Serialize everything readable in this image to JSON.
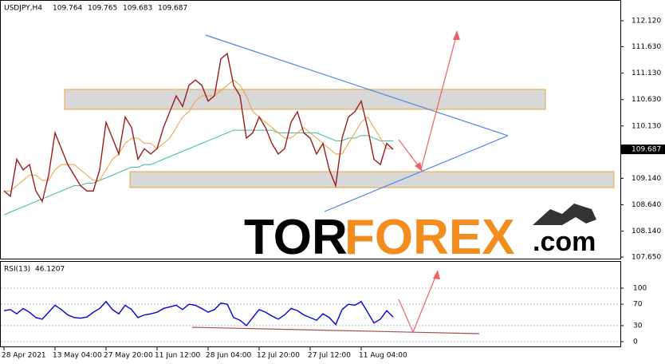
{
  "symbol": "USDJPY,H4",
  "ohlc": [
    109.764,
    109.765,
    109.683,
    109.687
  ],
  "watermark": [
    "TOR",
    "FOREX",
    ".com"
  ],
  "chart_data": [
    {
      "type": "line",
      "ylim": [
        107.605,
        112.513
      ],
      "yticks": [
        {
          "value": 107.65,
          "label": "107.650"
        },
        {
          "value": 108.14,
          "label": "108.140"
        },
        {
          "value": 108.64,
          "label": "108.640"
        },
        {
          "value": 109.14,
          "label": "109.140"
        },
        {
          "value": 110.13,
          "label": "110.130"
        },
        {
          "value": 110.63,
          "label": "110.630"
        },
        {
          "value": 111.13,
          "label": "111.130"
        },
        {
          "value": 111.63,
          "label": "111.630"
        },
        {
          "value": 112.12,
          "label": "112.120"
        }
      ],
      "last_price": 109.687,
      "series": [
        {
          "color": "#9b1c1c",
          "values": [
            108.9,
            108.8,
            109.5,
            109.3,
            109.4,
            108.9,
            108.7,
            109.2,
            110.0,
            109.7,
            109.4,
            109.2,
            109.0,
            108.9,
            108.9,
            109.3,
            110.2,
            109.9,
            109.6,
            110.3,
            110.1,
            109.5,
            109.7,
            109.6,
            109.7,
            110.1,
            110.4,
            110.7,
            110.5,
            110.9,
            111.0,
            110.9,
            110.6,
            110.7,
            111.4,
            111.5,
            110.9,
            110.7,
            109.9,
            110.0,
            110.3,
            110.1,
            109.8,
            109.6,
            109.7,
            110.2,
            110.4,
            110.0,
            109.9,
            109.6,
            109.8,
            109.3,
            109.0,
            109.9,
            110.3,
            110.4,
            110.6,
            110.1,
            109.5,
            109.4,
            109.8,
            109.687
          ]
        },
        {
          "color": "#e8a040",
          "values": [
            108.9,
            108.9,
            109.0,
            109.1,
            109.2,
            109.2,
            109.1,
            109.1,
            109.3,
            109.4,
            109.4,
            109.4,
            109.3,
            109.2,
            109.1,
            109.1,
            109.3,
            109.5,
            109.6,
            109.8,
            109.9,
            109.9,
            109.8,
            109.8,
            109.7,
            109.8,
            109.9,
            110.1,
            110.3,
            110.4,
            110.6,
            110.7,
            110.7,
            110.7,
            110.8,
            110.9,
            111.0,
            110.9,
            110.7,
            110.4,
            110.3,
            110.2,
            110.1,
            110.0,
            109.9,
            109.9,
            110.0,
            110.1,
            110.0,
            109.9,
            109.8,
            109.7,
            109.6,
            109.6,
            109.8,
            110.0,
            110.2,
            110.3,
            110.1,
            109.9,
            109.7,
            109.7
          ]
        },
        {
          "color": "#3cb89a",
          "values": [
            108.45,
            108.5,
            108.55,
            108.6,
            108.65,
            108.7,
            108.75,
            108.8,
            108.85,
            108.9,
            108.95,
            109.0,
            109.0,
            109.05,
            109.05,
            109.1,
            109.15,
            109.2,
            109.25,
            109.3,
            109.35,
            109.35,
            109.4,
            109.4,
            109.45,
            109.5,
            109.55,
            109.6,
            109.65,
            109.7,
            109.75,
            109.8,
            109.85,
            109.9,
            109.95,
            110.0,
            110.05,
            110.05,
            110.05,
            110.05,
            110.05,
            110.05,
            110.05,
            110.0,
            110.0,
            110.0,
            110.0,
            110.0,
            110.0,
            110.0,
            109.95,
            109.9,
            109.85,
            109.85,
            109.9,
            109.9,
            109.95,
            109.95,
            109.9,
            109.85,
            109.85,
            109.85
          ]
        }
      ]
    },
    {
      "type": "line",
      "title": "RSI(13)",
      "ylim": [
        -10.4,
        150.7
      ],
      "yticks": [
        0,
        30,
        70,
        100
      ],
      "grid": true,
      "categories": [
        "28 Apr 2021",
        null,
        null,
        null,
        null,
        null,
        null,
        null,
        "13 May 04:00",
        null,
        null,
        null,
        null,
        null,
        null,
        null,
        "27 May 20:00",
        null,
        null,
        null,
        null,
        null,
        null,
        null,
        "11 Jun 12:00",
        null,
        null,
        null,
        null,
        null,
        null,
        null,
        "28 Jun 04:00",
        null,
        null,
        null,
        null,
        null,
        null,
        null,
        "12 Jul 20:00",
        null,
        null,
        null,
        null,
        null,
        null,
        null,
        "27 Jul 12:00",
        null,
        null,
        null,
        null,
        null,
        null,
        null,
        "11 Aug 04:00",
        null,
        null,
        null,
        null,
        null
      ],
      "series": [
        {
          "color": "#0000dd",
          "values": [
            58,
            60,
            52,
            62,
            55,
            45,
            42,
            55,
            68,
            60,
            50,
            45,
            44,
            46,
            55,
            62,
            75,
            60,
            52,
            68,
            60,
            45,
            50,
            52,
            55,
            62,
            65,
            68,
            60,
            70,
            68,
            62,
            55,
            60,
            72,
            70,
            45,
            40,
            30,
            45,
            60,
            55,
            48,
            42,
            50,
            62,
            58,
            50,
            45,
            40,
            52,
            45,
            32,
            60,
            70,
            68,
            75,
            55,
            35,
            42,
            58,
            46.1207
          ]
        }
      ]
    }
  ]
}
